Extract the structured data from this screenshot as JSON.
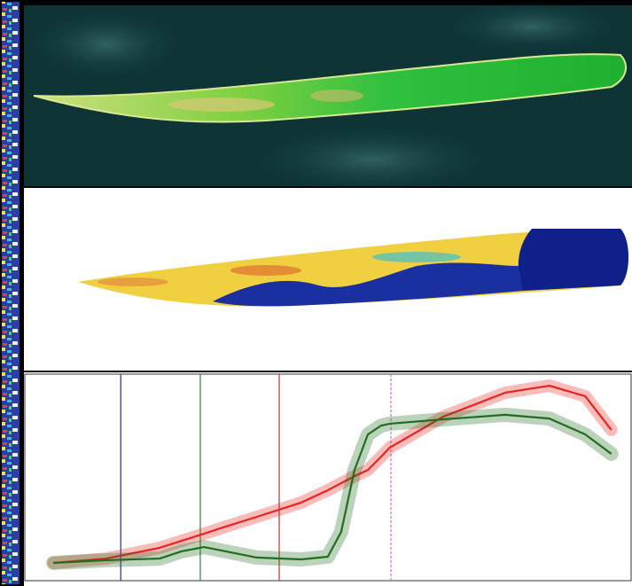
{
  "chart_data": {
    "type": "line",
    "x": [
      4.7,
      13.4,
      22.2,
      25.8,
      29.5,
      33.1,
      38.2,
      45.5,
      49.9,
      52.1,
      54.3,
      56.5,
      58.7,
      60.1,
      68.9,
      79.1,
      86.4,
      92.3,
      96.6
    ],
    "series": [
      {
        "color": "#e8231f",
        "values": [
          8.6,
          10.7,
          15.9,
          19.3,
          22.7,
          26.2,
          30.9,
          37.8,
          43.8,
          47.2,
          50.6,
          53.6,
          60.1,
          64.4,
          79.4,
          91.0,
          94.4,
          89.3,
          73.0
        ]
      },
      {
        "color": "#1f6e1f",
        "values": [
          8.6,
          9.9,
          10.7,
          14.2,
          16.3,
          14.2,
          11.2,
          10.3,
          11.6,
          23.6,
          53.6,
          70.8,
          75.1,
          76.0,
          78.1,
          80.3,
          78.5,
          70.8,
          61.4
        ]
      }
    ],
    "vlines": [
      {
        "x": 15.8,
        "color": "#2a2aa8"
      },
      {
        "x": 28.9,
        "color": "#2e8a2e"
      },
      {
        "x": 41.9,
        "color": "#c23030"
      },
      {
        "x": 60.3,
        "color": "#c070d0"
      }
    ],
    "xlim": [
      0,
      100
    ],
    "ylim": [
      0,
      100
    ]
  }
}
